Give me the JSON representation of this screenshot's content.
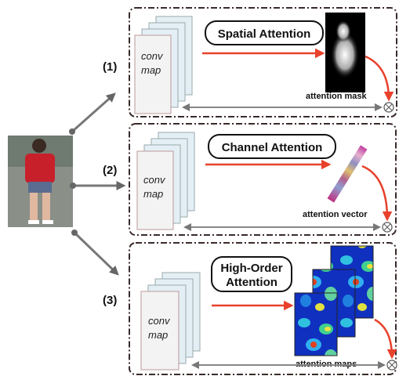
{
  "panels": [
    {
      "number": "(1)",
      "conv": "conv",
      "map": "map",
      "title_lines": [
        "Spatial Attention"
      ],
      "caption": "attention mask"
    },
    {
      "number": "(2)",
      "conv": "conv",
      "map": "map",
      "title_lines": [
        "Channel Attention"
      ],
      "caption": "attention vector"
    },
    {
      "number": "(3)",
      "conv": "conv",
      "map": "map",
      "title_lines": [
        "High-Order",
        "Attention"
      ],
      "caption": "attention maps"
    }
  ]
}
